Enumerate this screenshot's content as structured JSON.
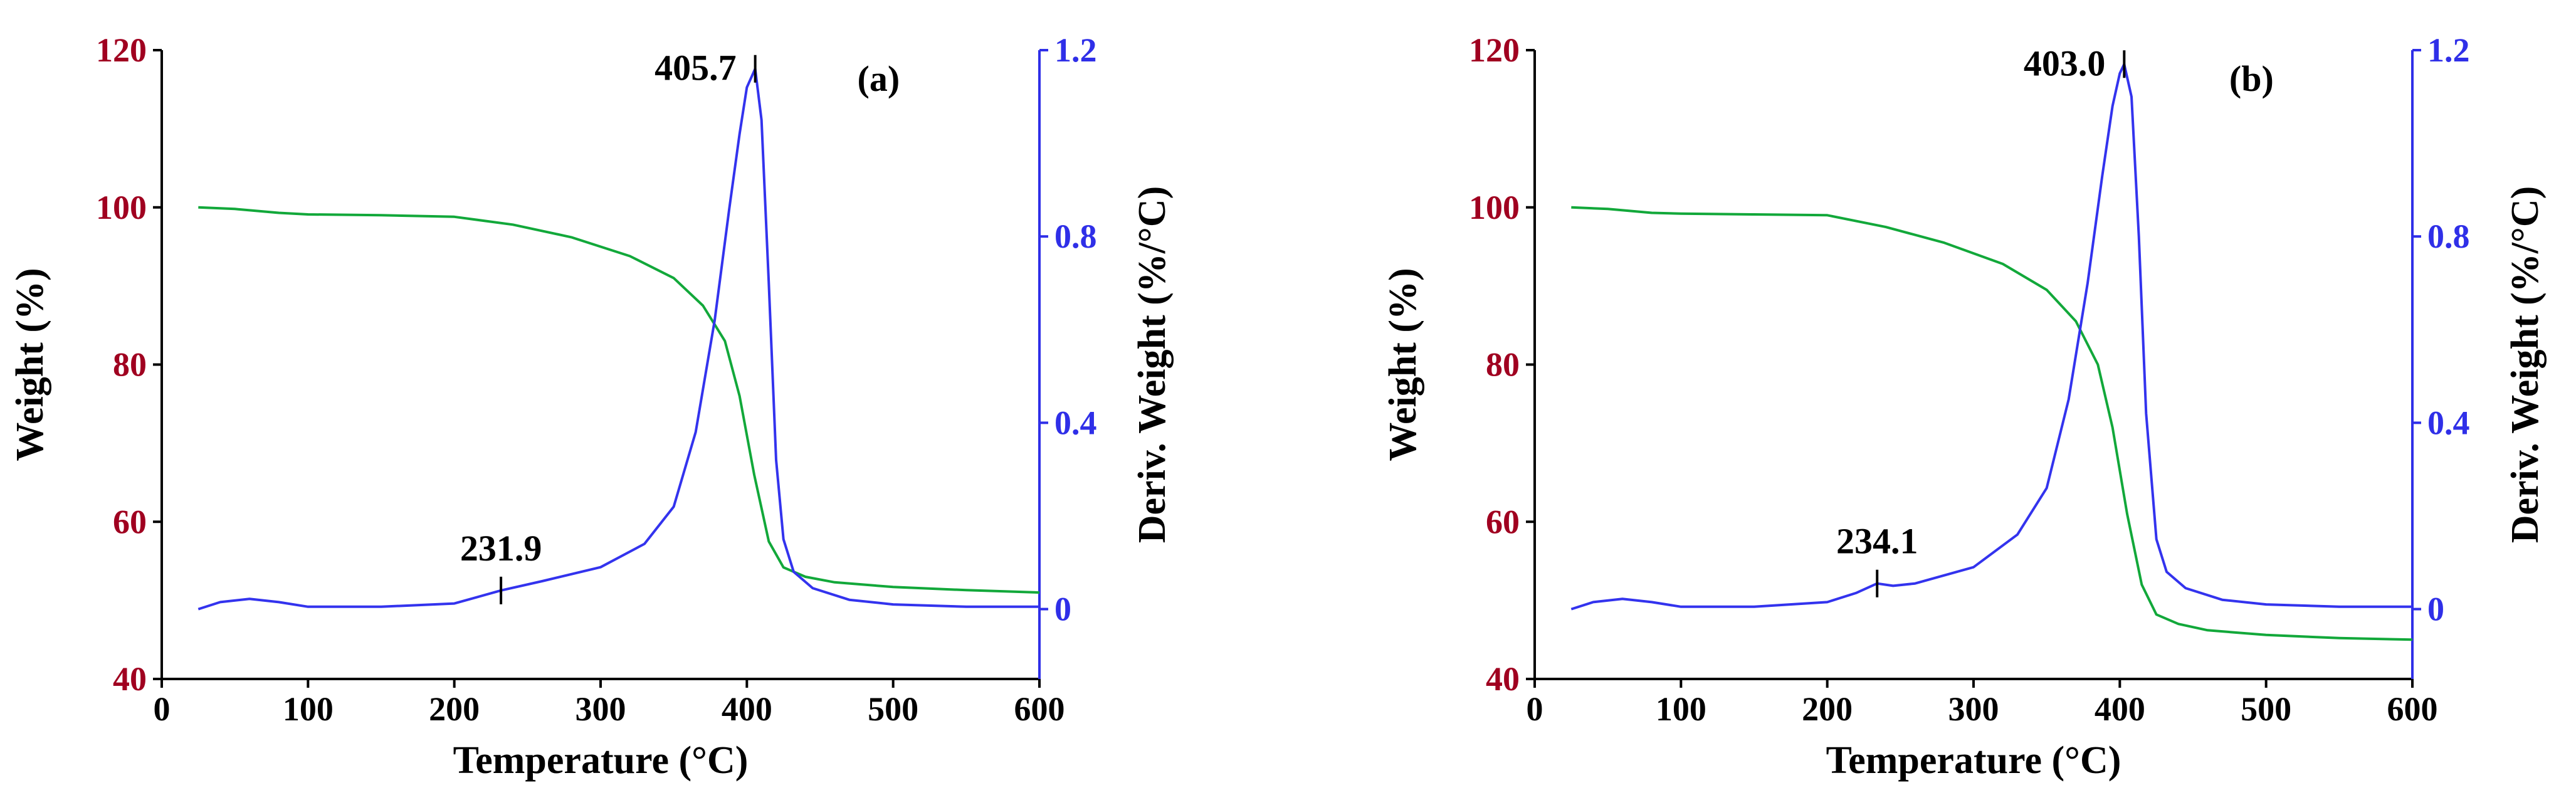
{
  "colors": {
    "weight_axis": "#a00020",
    "deriv_axis": "#2f2fe8",
    "weight_line": "#12a83a",
    "deriv_line": "#3333ee",
    "axis": "#000000"
  },
  "chart_data": [
    {
      "type": "line",
      "panel_label": "(a)",
      "xlabel": "Temperature (°C)",
      "ylabel_left": "Weight (%)",
      "ylabel_right": "Deriv. Weight (%/°C)",
      "xlim": [
        0,
        600
      ],
      "ylim_left": [
        40,
        120
      ],
      "ylim_right": [
        -0.15,
        1.2
      ],
      "xticks": [
        0,
        100,
        200,
        300,
        400,
        500,
        600
      ],
      "yticks_left": [
        40,
        60,
        80,
        100,
        120
      ],
      "yticks_right": [
        0,
        0.4,
        0.8,
        1.2
      ],
      "series": [
        {
          "name": "Weight",
          "axis": "left",
          "x": [
            25,
            50,
            80,
            100,
            150,
            200,
            240,
            280,
            320,
            350,
            370,
            385,
            395,
            405,
            415,
            425,
            440,
            460,
            500,
            550,
            600
          ],
          "values": [
            100,
            99.8,
            99.3,
            99.1,
            99.0,
            98.8,
            97.8,
            96.2,
            93.8,
            91.0,
            87.5,
            83.0,
            76.0,
            66.0,
            57.5,
            54.2,
            53.0,
            52.3,
            51.7,
            51.3,
            51.0
          ]
        },
        {
          "name": "Deriv. Weight",
          "axis": "right",
          "x": [
            25,
            40,
            60,
            80,
            100,
            150,
            200,
            231.9,
            260,
            300,
            330,
            350,
            365,
            378,
            388,
            395,
            400,
            405.7,
            410,
            415,
            420,
            425,
            432,
            445,
            470,
            500,
            550,
            600
          ],
          "values": [
            0.0,
            0.015,
            0.022,
            0.015,
            0.005,
            0.005,
            0.012,
            0.04,
            0.06,
            0.09,
            0.14,
            0.22,
            0.38,
            0.62,
            0.86,
            1.02,
            1.12,
            1.16,
            1.05,
            0.7,
            0.32,
            0.15,
            0.08,
            0.045,
            0.02,
            0.01,
            0.005,
            0.005
          ]
        }
      ],
      "annotations": [
        {
          "text": "405.7",
          "x": 405.7,
          "y": 1.16,
          "axis": "right"
        },
        {
          "text": "231.9",
          "x": 231.9,
          "y": 0.04,
          "axis": "right"
        }
      ]
    },
    {
      "type": "line",
      "panel_label": "(b)",
      "xlabel": "Temperature (°C)",
      "ylabel_left": "Weight (%)",
      "ylabel_right": "Deriv. Weight (%/°C)",
      "xlim": [
        0,
        600
      ],
      "ylim_left": [
        40,
        120
      ],
      "ylim_right": [
        -0.15,
        1.2
      ],
      "xticks": [
        0,
        100,
        200,
        300,
        400,
        500,
        600
      ],
      "yticks_left": [
        40,
        60,
        80,
        100,
        120
      ],
      "yticks_right": [
        0,
        0.4,
        0.8,
        1.2
      ],
      "series": [
        {
          "name": "Weight",
          "axis": "left",
          "x": [
            25,
            50,
            80,
            100,
            150,
            200,
            240,
            280,
            320,
            350,
            370,
            385,
            395,
            405,
            415,
            425,
            440,
            460,
            500,
            550,
            600
          ],
          "values": [
            100,
            99.8,
            99.3,
            99.2,
            99.1,
            99.0,
            97.5,
            95.5,
            92.8,
            89.5,
            85.5,
            80.0,
            72.0,
            61.0,
            52.0,
            48.2,
            47.0,
            46.2,
            45.6,
            45.2,
            45.0
          ]
        },
        {
          "name": "Deriv. Weight",
          "axis": "right",
          "x": [
            25,
            40,
            60,
            80,
            100,
            150,
            200,
            220,
            234.1,
            245,
            260,
            300,
            330,
            350,
            365,
            378,
            388,
            395,
            400,
            403.0,
            408,
            413,
            418,
            425,
            432,
            445,
            470,
            500,
            550,
            600
          ],
          "values": [
            0.0,
            0.015,
            0.022,
            0.015,
            0.005,
            0.005,
            0.015,
            0.035,
            0.055,
            0.05,
            0.055,
            0.09,
            0.16,
            0.26,
            0.45,
            0.7,
            0.93,
            1.08,
            1.15,
            1.17,
            1.1,
            0.8,
            0.42,
            0.15,
            0.08,
            0.045,
            0.02,
            0.01,
            0.005,
            0.005
          ]
        }
      ],
      "annotations": [
        {
          "text": "403.0",
          "x": 403.0,
          "y": 1.17,
          "axis": "right"
        },
        {
          "text": "234.1",
          "x": 234.1,
          "y": 0.055,
          "axis": "right"
        }
      ]
    }
  ]
}
